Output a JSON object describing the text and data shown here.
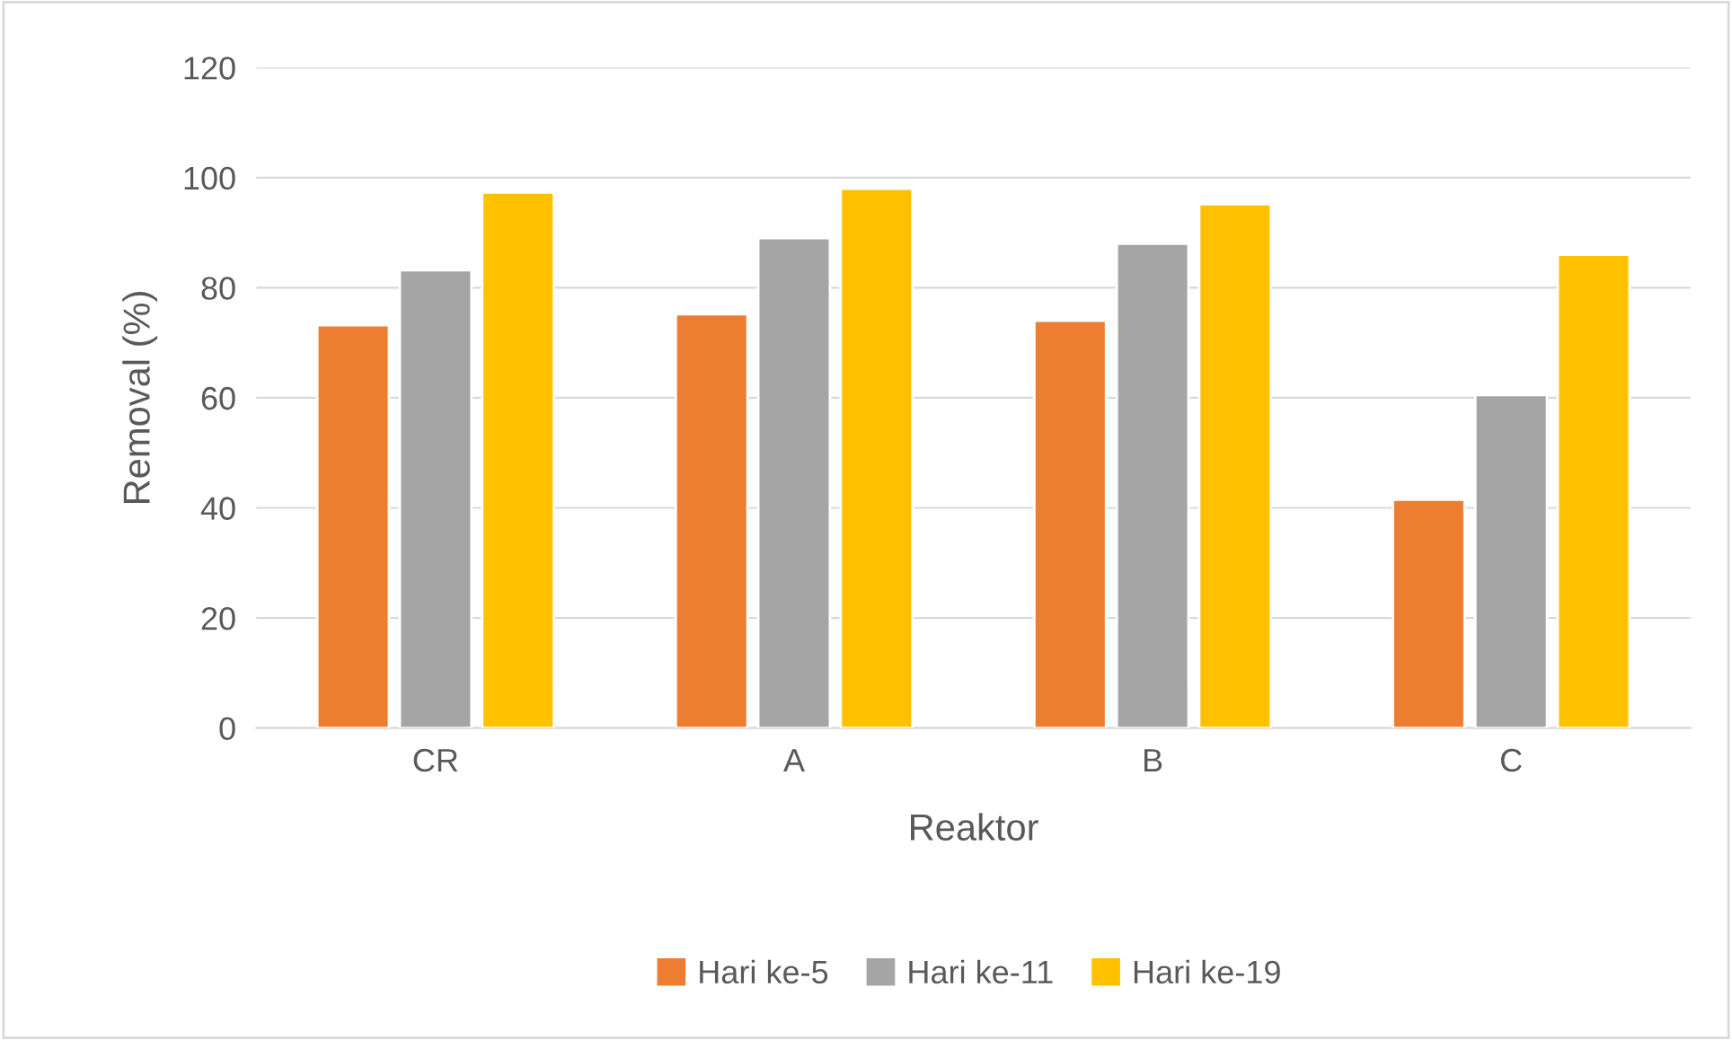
{
  "chart_data": {
    "type": "bar",
    "xlabel": "Reaktor",
    "ylabel": "Removal (%)",
    "categories": [
      "CR",
      "A",
      "B",
      "C"
    ],
    "series": [
      {
        "name": "Hari ke-5",
        "color": "#ed7d31",
        "values": [
          73.2,
          75.2,
          74,
          41.5
        ]
      },
      {
        "name": "Hari ke-11",
        "color": "#a5a5a5",
        "values": [
          83.2,
          89,
          88,
          60.5
        ]
      },
      {
        "name": "Hari ke-19",
        "color": "#ffc000",
        "values": [
          97.3,
          98,
          95.2,
          86
        ]
      }
    ],
    "ylim": [
      0,
      120
    ],
    "yticks": [
      0,
      20,
      40,
      60,
      80,
      100,
      120
    ],
    "grid": "y",
    "legend": "bottom"
  }
}
